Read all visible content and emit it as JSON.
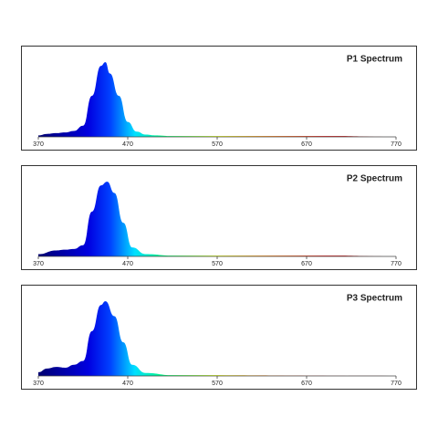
{
  "chart_data": [
    {
      "type": "area",
      "title": "P1 Spectrum",
      "x": [
        370,
        380,
        390,
        400,
        410,
        420,
        430,
        440,
        445,
        450,
        460,
        470,
        480,
        490,
        500,
        520,
        550,
        600,
        650,
        700,
        770
      ],
      "values": [
        0.02,
        0.04,
        0.05,
        0.06,
        0.08,
        0.15,
        0.55,
        0.95,
        1.0,
        0.85,
        0.55,
        0.2,
        0.07,
        0.03,
        0.02,
        0.01,
        0.01,
        0.01,
        0.01,
        0.01,
        0
      ],
      "xlim": [
        370,
        770
      ],
      "xticks": [
        370,
        470,
        570,
        670,
        770
      ],
      "ylim": [
        0,
        1.1
      ]
    },
    {
      "type": "area",
      "title": "P2 Spectrum",
      "x": [
        370,
        390,
        400,
        410,
        420,
        430,
        440,
        447,
        455,
        465,
        475,
        490,
        520,
        600,
        700,
        770
      ],
      "values": [
        0.03,
        0.08,
        0.09,
        0.1,
        0.15,
        0.6,
        0.95,
        1.0,
        0.85,
        0.45,
        0.12,
        0.03,
        0.01,
        0.01,
        0.01,
        0
      ],
      "xlim": [
        370,
        770
      ],
      "xticks": [
        370,
        470,
        570,
        670,
        770
      ],
      "ylim": [
        0,
        1.1
      ]
    },
    {
      "type": "area",
      "title": "P3 Spectrum",
      "x": [
        370,
        380,
        390,
        400,
        410,
        420,
        430,
        440,
        445,
        455,
        465,
        475,
        490,
        520,
        770
      ],
      "values": [
        0.05,
        0.1,
        0.12,
        0.11,
        0.15,
        0.2,
        0.6,
        0.95,
        1.0,
        0.8,
        0.45,
        0.15,
        0.04,
        0.01,
        0
      ],
      "xlim": [
        370,
        770
      ],
      "xticks": [
        370,
        470,
        570,
        670,
        770
      ],
      "ylim": [
        0,
        1.1
      ]
    }
  ]
}
